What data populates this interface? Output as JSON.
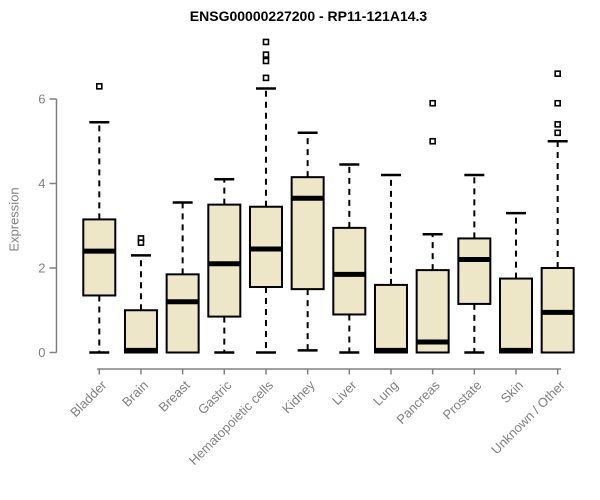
{
  "page": {
    "background": "#ffffff"
  },
  "chart_data": {
    "type": "boxplot",
    "title": "ENSG00000227200 - RP11-121A14.3",
    "ylabel": "Expression",
    "xlabel": "",
    "yticks": [
      0,
      2,
      4,
      6
    ],
    "ylim": [
      0,
      7.5
    ],
    "grid": false,
    "legend": "none",
    "colors": {
      "box_fill": "#EDE6C7",
      "box_stroke": "#000000",
      "median": "#000000",
      "whisker": "#000000",
      "outlier_stroke": "#000000",
      "axis": "#808080",
      "tick_text": "#808080",
      "title_text": "#000000"
    },
    "categories": [
      "Bladder",
      "Brain",
      "Breast",
      "Gastric",
      "Hematopoietic cells",
      "Kidney",
      "Liver",
      "Lung",
      "Pancreas",
      "Prostate",
      "Skin",
      "Unknown / Other"
    ],
    "series": [
      {
        "category": "Bladder",
        "whisker_low": 0,
        "q1": 1.35,
        "median": 2.4,
        "q3": 3.15,
        "whisker_high": 5.45,
        "outliers": [
          6.3
        ]
      },
      {
        "category": "Brain",
        "whisker_low": 0,
        "q1": 0,
        "median": 0.05,
        "q3": 1.0,
        "whisker_high": 2.3,
        "outliers": [
          2.7,
          2.6
        ]
      },
      {
        "category": "Breast",
        "whisker_low": 0,
        "q1": 0,
        "median": 1.2,
        "q3": 1.85,
        "whisker_high": 3.55,
        "outliers": []
      },
      {
        "category": "Gastric",
        "whisker_low": 0,
        "q1": 0.85,
        "median": 2.1,
        "q3": 3.5,
        "whisker_high": 4.1,
        "outliers": []
      },
      {
        "category": "Hematopoietic cells",
        "whisker_low": 0,
        "q1": 1.55,
        "median": 2.45,
        "q3": 3.45,
        "whisker_high": 6.25,
        "outliers": [
          7.35,
          7.05,
          6.9,
          6.5
        ]
      },
      {
        "category": "Kidney",
        "whisker_low": 0.05,
        "q1": 1.5,
        "median": 3.65,
        "q3": 4.15,
        "whisker_high": 5.2,
        "outliers": []
      },
      {
        "category": "Liver",
        "whisker_low": 0,
        "q1": 0.9,
        "median": 1.85,
        "q3": 2.95,
        "whisker_high": 4.45,
        "outliers": []
      },
      {
        "category": "Lung",
        "whisker_low": 0,
        "q1": 0,
        "median": 0.05,
        "q3": 1.6,
        "whisker_high": 4.2,
        "outliers": []
      },
      {
        "category": "Pancreas",
        "whisker_low": 0,
        "q1": 0,
        "median": 0.25,
        "q3": 1.95,
        "whisker_high": 2.8,
        "outliers": [
          5.9,
          5.0
        ]
      },
      {
        "category": "Prostate",
        "whisker_low": 0,
        "q1": 1.15,
        "median": 2.2,
        "q3": 2.7,
        "whisker_high": 4.2,
        "outliers": []
      },
      {
        "category": "Skin",
        "whisker_low": 0,
        "q1": 0,
        "median": 0.05,
        "q3": 1.75,
        "whisker_high": 3.3,
        "outliers": []
      },
      {
        "category": "Unknown / Other",
        "whisker_low": 0,
        "q1": 0,
        "median": 0.95,
        "q3": 2.0,
        "whisker_high": 5.0,
        "outliers": [
          6.6,
          5.9,
          5.4,
          5.2
        ]
      }
    ]
  }
}
